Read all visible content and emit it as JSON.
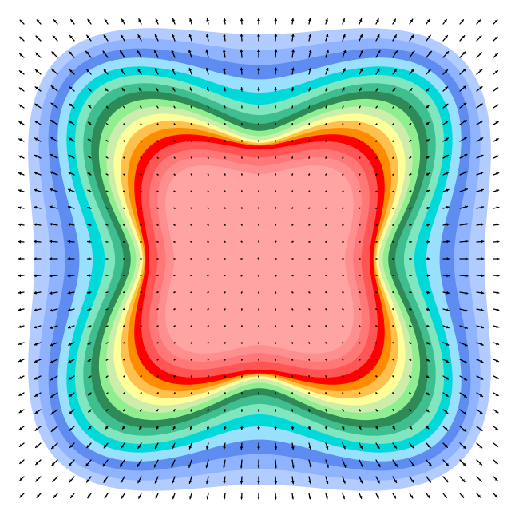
{
  "figure": {
    "kind": "filled-contour-with-vector-field",
    "background": "#ffffff",
    "levels_outer_to_inner": [
      "#b3ccff",
      "#8fb3ff",
      "#5f8cf0",
      "#99e0ff",
      "#00d9d9",
      "#7fe6bf",
      "#3fbf8f",
      "#2e8b57",
      "#90ee90",
      "#cdeeaa",
      "#ffff99",
      "#ffc04d",
      "#ff8c00",
      "#ff0000",
      "#ff5555",
      "#ff7777",
      "#ff8f8f",
      "#ffa3a3"
    ],
    "arrow_color": "#000000",
    "text_labels": []
  }
}
